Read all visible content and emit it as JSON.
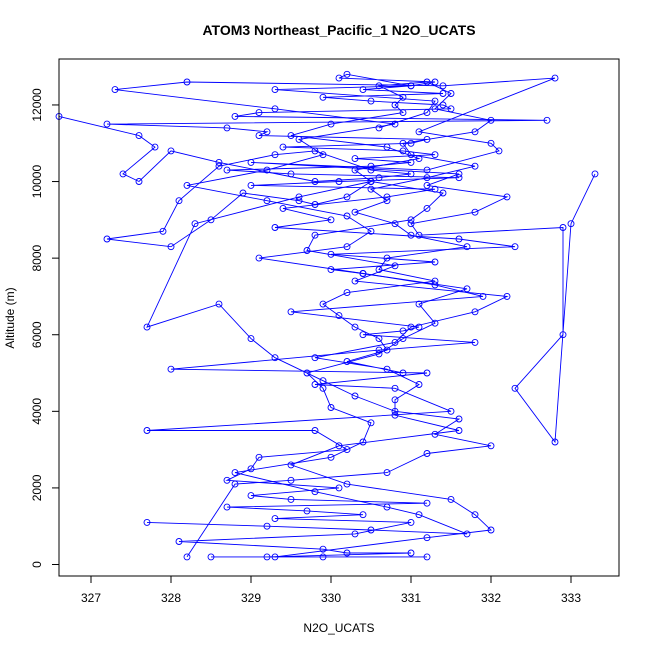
{
  "chart_data": {
    "type": "line",
    "title": "ATOM3 Northeast_Pacific_1 N2O_UCATS",
    "xlabel": "N2O_UCATS",
    "ylabel": "Altitude (m)",
    "xlim": [
      326.6,
      333.6
    ],
    "ylim": [
      -300,
      13200
    ],
    "xticks": [
      "327",
      "328",
      "329",
      "330",
      "331",
      "332",
      "333"
    ],
    "yticks": [
      "0",
      "2000",
      "4000",
      "6000",
      "8000",
      "10000",
      "12000"
    ],
    "grid": false,
    "legend": "none",
    "series_color": "#0000ff",
    "series": [
      {
        "x": [
          331.2,
          329.9,
          328.5,
          329.2,
          331.0,
          330.2,
          329.9,
          328.1,
          330.3,
          331.0,
          329.3,
          330.4,
          329.7,
          328.7,
          331.2,
          329.5,
          329.0,
          330.1,
          328.7,
          329.0,
          329.1,
          330.2,
          329.8,
          327.7,
          331.5,
          330.8,
          329.8,
          331.2,
          328.0,
          330.6,
          331.8,
          330.4,
          330.9,
          331.1,
          329.5,
          331.9,
          331.3,
          330.4,
          330.0,
          331.3,
          330.0,
          332.3,
          331.6,
          329.3,
          330.0,
          329.4,
          330.7,
          331.3,
          329.0,
          330.1,
          331.6,
          329.5,
          328.7,
          330.5,
          331.0,
          330.3,
          331.3,
          330.9,
          329.4,
          331.0,
          331.2,
          329.1,
          329.2,
          328.7,
          327.2,
          332.7,
          328.8,
          329.1,
          331.5,
          331.4,
          330.5,
          329.9,
          331.4,
          330.4,
          331.0,
          331.3,
          330.1,
          330.2,
          331.0,
          329.3,
          331.3,
          331.2,
          330.6
        ],
        "y": [
          200,
          200,
          200,
          200,
          300,
          300,
          400,
          600,
          800,
          1100,
          1200,
          1300,
          1400,
          1500,
          1600,
          1700,
          1800,
          2000,
          2200,
          2500,
          2800,
          3000,
          3500,
          3500,
          4000,
          4600,
          4700,
          5000,
          5100,
          5600,
          5800,
          6000,
          6100,
          6200,
          6600,
          7000,
          7300,
          7600,
          7700,
          7900,
          8100,
          8300,
          8500,
          8800,
          9000,
          9300,
          9600,
          9800,
          9900,
          10000,
          10100,
          10200,
          10300,
          10400,
          10500,
          10600,
          10700,
          10800,
          10900,
          11000,
          11100,
          11200,
          11300,
          11400,
          11500,
          11600,
          11700,
          11800,
          11900,
          12000,
          12100,
          12200,
          12300,
          12400,
          12500,
          12600,
          12700,
          12800,
          12500,
          12400,
          12100,
          11800,
          11400
        ]
      },
      {
        "x": [
          329.3,
          331.2,
          332.0,
          331.8,
          331.5,
          330.2,
          329.5,
          330.1,
          331.6,
          330.8,
          330.8,
          331.1,
          330.7,
          329.8,
          330.8,
          331.0,
          331.8,
          332.2,
          330.3,
          330.8,
          329.7,
          329.8,
          331.0,
          331.2,
          331.4,
          330.5,
          330.3,
          331.1,
          330.7,
          329.5,
          330.0,
          330.9,
          330.8,
          330.9,
          330.6,
          331.2,
          331.5,
          331.3,
          332.0,
          331.8,
          330.9,
          331.0,
          331.8,
          331.2,
          330.5,
          330.7,
          330.3,
          330.8,
          331.0,
          331.7,
          330.7,
          330.6,
          331.3,
          330.2,
          329.9,
          330.1,
          330.3,
          330.6,
          330.7,
          330.2,
          330.9
        ],
        "y": [
          200,
          700,
          900,
          1300,
          1700,
          2100,
          2600,
          3100,
          3500,
          3900,
          4300,
          4700,
          5100,
          5400,
          5800,
          6200,
          6600,
          7000,
          7400,
          7800,
          8200,
          8600,
          9000,
          9300,
          9700,
          10000,
          10300,
          10600,
          10900,
          11200,
          11500,
          11800,
          12000,
          12200,
          12500,
          12600,
          12300,
          11900,
          11600,
          11300,
          11000,
          10700,
          10400,
          10100,
          9800,
          9500,
          9200,
          8900,
          8600,
          8300,
          8000,
          7700,
          7400,
          7100,
          6800,
          6500,
          6200,
          5900,
          5600,
          5300,
          5000
        ]
      },
      {
        "x": [
          327.7,
          329.2,
          330.5,
          331.7,
          331.1,
          330.7,
          329.8,
          328.8,
          330.0,
          330.4,
          330.5,
          330.0,
          329.9,
          329.7,
          330.6,
          330.9,
          331.3,
          331.1,
          331.7,
          330.4,
          329.1,
          330.2,
          330.5,
          330.2,
          329.2,
          328.2,
          329.2,
          329.9,
          329.6,
          330.8,
          329.3,
          327.3,
          328.2,
          331.4,
          332.8,
          331.1,
          332.0,
          332.1,
          331.2,
          329.0,
          331.6,
          331.2,
          332.2,
          331.8,
          331.0,
          331.1,
          332.9,
          332.9,
          332.3,
          332.8,
          333.0,
          333.3
        ],
        "y": [
          1100,
          1000,
          900,
          800,
          1300,
          1500,
          1900,
          2400,
          2800,
          3200,
          3700,
          4100,
          4600,
          5000,
          5500,
          5900,
          6300,
          6800,
          7200,
          7600,
          8000,
          8300,
          8700,
          9100,
          9500,
          9900,
          10300,
          10700,
          11100,
          11500,
          11900,
          12400,
          12600,
          12500,
          12700,
          11300,
          11000,
          10800,
          10300,
          10500,
          10200,
          9900,
          9600,
          9200,
          8900,
          8600,
          8800,
          6000,
          4600,
          3200,
          8900,
          10200
        ]
      },
      {
        "x": [
          326.6,
          327.6,
          327.8,
          327.4,
          327.6,
          328.0,
          328.6,
          329.8,
          330.6,
          331.0,
          330.5,
          329.8,
          329.3,
          328.6,
          328.1,
          327.9,
          327.2,
          328.0,
          328.5,
          328.9,
          329.6,
          329.8,
          330.2,
          330.5,
          329.6,
          328.3,
          327.7,
          328.6,
          329.0,
          329.3,
          329.9,
          330.3,
          330.8,
          331.6,
          331.3,
          332.0,
          331.2,
          330.7,
          329.5,
          328.8,
          328.2
        ],
        "y": [
          11700,
          11200,
          10900,
          10200,
          10000,
          10800,
          10500,
          10000,
          10100,
          10200,
          10300,
          10800,
          10700,
          10400,
          9500,
          8700,
          8500,
          8300,
          9000,
          9700,
          9500,
          9400,
          9600,
          10000,
          9600,
          8900,
          6200,
          6800,
          5900,
          5400,
          4800,
          4400,
          4000,
          3800,
          3400,
          3100,
          2900,
          2400,
          2200,
          2100,
          200
        ]
      }
    ]
  }
}
